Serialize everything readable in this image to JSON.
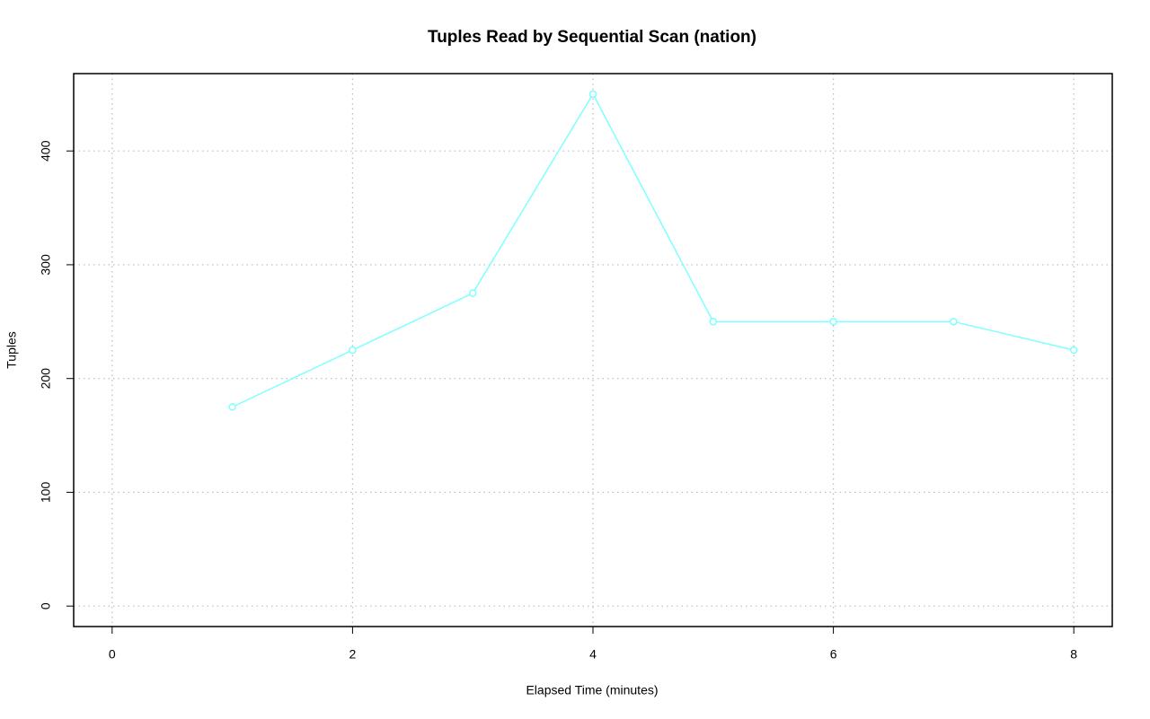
{
  "chart_data": {
    "type": "line",
    "title": "Tuples Read by Sequential Scan (nation)",
    "x_label": "Elapsed Time (minutes)",
    "y_label": "Tuples",
    "x": [
      1,
      2,
      3,
      4,
      5,
      6,
      7,
      8
    ],
    "series": [
      {
        "name": "nation",
        "color": "#7fffff",
        "values": [
          175,
          225,
          275,
          450,
          250,
          250,
          250,
          225
        ]
      }
    ],
    "xlim": [
      -0.32,
      8.32
    ],
    "xticks": [
      0,
      2,
      4,
      6,
      8
    ],
    "ylim": [
      -18,
      468
    ],
    "yticks": [
      0,
      100,
      200,
      300,
      400
    ],
    "grid": true
  }
}
